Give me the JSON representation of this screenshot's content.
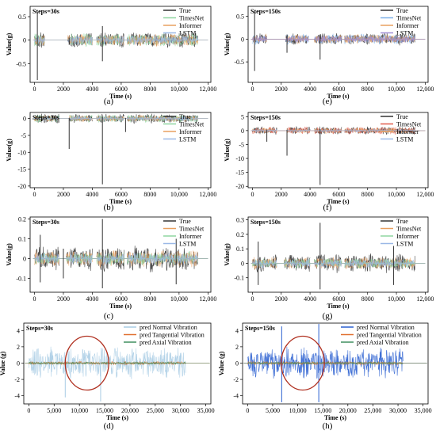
{
  "chart_data": [
    {
      "panel": "a",
      "caption": "(a)",
      "steps_label": "Steps=30s",
      "type": "line",
      "xlabel": "Time (s)",
      "ylabel": "Value(g)",
      "xlim": [
        -300,
        12200
      ],
      "ylim": [
        -0.9,
        0.72
      ],
      "xticks": [
        0,
        2000,
        4000,
        6000,
        8000,
        10000,
        12000
      ],
      "xtick_labels": [
        "0",
        "2000",
        "4000",
        "6000",
        "8000",
        "10,000",
        "12,000"
      ],
      "yticks": [
        -0.5,
        0,
        0.5
      ],
      "ytick_labels": [
        "-0.5",
        "0",
        "0.5"
      ],
      "legend_position": "top-right",
      "series": [
        {
          "name": "True",
          "color": "#333333",
          "amplitude": 0.12
        },
        {
          "name": "TimesNet",
          "color": "#8fd6a0",
          "amplitude": 0.1
        },
        {
          "name": "Informer",
          "color": "#e8a060",
          "amplitude": 0.09
        },
        {
          "name": "LSTM",
          "color": "#9bb8e6",
          "amplitude": 0.07
        }
      ],
      "segments": [
        [
          0,
          700
        ],
        [
          2300,
          4000
        ],
        [
          4300,
          6200
        ],
        [
          6400,
          11300
        ]
      ],
      "spikes": [
        [
          200,
          0.6,
          -0.85
        ],
        [
          4700,
          0.3,
          -0.45
        ],
        [
          2400,
          0.05,
          -0.1
        ]
      ]
    },
    {
      "panel": "e",
      "caption": "(e)",
      "steps_label": "Steps=150s",
      "type": "line",
      "xlabel": "Time (s)",
      "ylabel": "Value(g)",
      "xlim": [
        -300,
        12200
      ],
      "ylim": [
        -0.95,
        0.72
      ],
      "xticks": [
        0,
        2000,
        4000,
        6000,
        8000,
        10000,
        12000
      ],
      "xtick_labels": [
        "0",
        "2000",
        "4000",
        "6000",
        "8000",
        "10,000",
        "12,000"
      ],
      "yticks": [
        -0.5,
        0,
        0.5
      ],
      "ytick_labels": [
        "-0.5",
        "0",
        "0.5"
      ],
      "legend_position": "top-right",
      "series": [
        {
          "name": "True",
          "color": "#333333",
          "amplitude": 0.09
        },
        {
          "name": "TimesNet",
          "color": "#7fb0e8",
          "amplitude": 0.08
        },
        {
          "name": "Informer",
          "color": "#e8a060",
          "amplitude": 0.07
        },
        {
          "name": "LSTM",
          "color": "#a08fd6",
          "amplitude": 0.06
        }
      ],
      "segments": [
        [
          0,
          1000
        ],
        [
          2300,
          3900
        ],
        [
          4300,
          6200
        ],
        [
          6400,
          11300
        ]
      ],
      "spikes": [
        [
          150,
          0.6,
          -0.7
        ],
        [
          2400,
          0.1,
          -0.3
        ],
        [
          4700,
          0.05,
          -0.45
        ]
      ]
    },
    {
      "panel": "b",
      "caption": "(b)",
      "steps_label": "Steps=30s",
      "type": "line",
      "xlabel": "Time (s)",
      "ylabel": "Value(g)",
      "xlim": [
        -300,
        12200
      ],
      "ylim": [
        -20.5,
        1.8
      ],
      "xticks": [
        0,
        2000,
        4000,
        6000,
        8000,
        10000,
        12000
      ],
      "xtick_labels": [
        "0",
        "2000",
        "4000",
        "6000",
        "8000",
        "10,000",
        "12,000"
      ],
      "yticks": [
        0,
        -5,
        -10,
        -15,
        -20
      ],
      "ytick_labels": [
        "0",
        "-5",
        "-10",
        "-15",
        "-20"
      ],
      "legend_position": "top-right",
      "series": [
        {
          "name": "True",
          "color": "#333333",
          "amplitude": 1.0
        },
        {
          "name": "TimesNet",
          "color": "#8fd6a0",
          "amplitude": 0.8
        },
        {
          "name": "Informer",
          "color": "#e8a060",
          "amplitude": 0.7
        },
        {
          "name": "LSTM",
          "color": "#9bb8e6",
          "amplitude": 0.5
        }
      ],
      "segments": [
        [
          0,
          1700
        ],
        [
          2400,
          4000
        ],
        [
          4300,
          6200
        ],
        [
          6400,
          11300
        ]
      ],
      "spikes": [
        [
          4700,
          0.5,
          -19.5
        ],
        [
          2400,
          0.2,
          -9
        ],
        [
          6300,
          0.2,
          -4
        ]
      ]
    },
    {
      "panel": "f",
      "caption": "(f)",
      "steps_label": "Steps=150s",
      "type": "line",
      "xlabel": "Time (s)",
      "ylabel": "Value(g)",
      "xlim": [
        -300,
        12200
      ],
      "ylim": [
        -20.5,
        6.5
      ],
      "xticks": [
        0,
        2000,
        4000,
        6000,
        8000,
        10000,
        12000
      ],
      "xtick_labels": [
        "0",
        "2000",
        "4000",
        "6000",
        "8000",
        "10,000",
        "12,000"
      ],
      "yticks": [
        5,
        0,
        -5,
        -10,
        -15,
        -20
      ],
      "ytick_labels": [
        "5",
        "0",
        "-5",
        "-10",
        "-15",
        "-20"
      ],
      "legend_position": "top-right",
      "series": [
        {
          "name": "True",
          "color": "#333333",
          "amplitude": 1.0
        },
        {
          "name": "TimesNet",
          "color": "#e05a4a",
          "amplitude": 0.9
        },
        {
          "name": "Informer",
          "color": "#e8a060",
          "amplitude": 0.7
        },
        {
          "name": "LSTM",
          "color": "#9bb8e6",
          "amplitude": 0.4
        }
      ],
      "segments": [
        [
          0,
          1700
        ],
        [
          2400,
          4000
        ],
        [
          4300,
          6200
        ],
        [
          6400,
          11300
        ]
      ],
      "spikes": [
        [
          4700,
          0.5,
          -19.5
        ],
        [
          2400,
          0.3,
          -9
        ],
        [
          1000,
          0.2,
          -4
        ]
      ]
    },
    {
      "panel": "c",
      "caption": "(c)",
      "steps_label": "Steps=30s",
      "type": "line",
      "xlabel": "Time (s)",
      "ylabel": "Value(g)",
      "xlim": [
        -300,
        12200
      ],
      "ylim": [
        -0.17,
        0.21
      ],
      "xticks": [
        0,
        2000,
        4000,
        6000,
        8000,
        10000,
        12000
      ],
      "xtick_labels": [
        "0",
        "2000",
        "4000",
        "6000",
        "8000",
        "10,000",
        "12,000"
      ],
      "yticks": [
        0.2,
        0.1,
        0,
        -0.1
      ],
      "ytick_labels": [
        "0.2",
        "0.1",
        "0",
        "-0.1"
      ],
      "legend_position": "top-right",
      "series": [
        {
          "name": "True",
          "color": "#333333",
          "amplitude": 0.045
        },
        {
          "name": "TimesNet",
          "color": "#e8a060",
          "amplitude": 0.03
        },
        {
          "name": "Informer",
          "color": "#8fd6a0",
          "amplitude": 0.025
        },
        {
          "name": "LSTM",
          "color": "#9bb8e6",
          "amplitude": 0.02
        }
      ],
      "segments": [
        [
          0,
          1700
        ],
        [
          2200,
          4000
        ],
        [
          4300,
          6200
        ],
        [
          6400,
          11300
        ]
      ],
      "spikes": [
        [
          4700,
          0.2,
          -0.15
        ],
        [
          9800,
          0.1,
          -0.13
        ],
        [
          400,
          0.12,
          -0.12
        ],
        [
          2000,
          0.05,
          -0.1
        ]
      ]
    },
    {
      "panel": "g",
      "caption": "(g)",
      "steps_label": "Steps=150s",
      "type": "line",
      "xlabel": "Time (s)",
      "ylabel": "Value(g)",
      "xlim": [
        -300,
        12200
      ],
      "ylim": [
        -0.2,
        0.32
      ],
      "xticks": [
        0,
        2000,
        4000,
        6000,
        8000,
        10000,
        12000
      ],
      "xtick_labels": [
        "0",
        "2000",
        "4000",
        "6000",
        "8000",
        "10,000",
        "12,000"
      ],
      "yticks": [
        0.3,
        0.2,
        0.1,
        0,
        -0.1
      ],
      "ytick_labels": [
        "0.3",
        "0.2",
        "0.1",
        "0",
        "-0.1"
      ],
      "legend_position": "top-right",
      "series": [
        {
          "name": "True",
          "color": "#333333",
          "amplitude": 0.045
        },
        {
          "name": "TimesNet",
          "color": "#e8a060",
          "amplitude": 0.03
        },
        {
          "name": "Informer",
          "color": "#8fd6a0",
          "amplitude": 0.025
        },
        {
          "name": "LSTM",
          "color": "#9bb8e6",
          "amplitude": 0.02
        }
      ],
      "segments": [
        [
          0,
          1700
        ],
        [
          2200,
          4000
        ],
        [
          4300,
          6200
        ],
        [
          6400,
          11300
        ]
      ],
      "spikes": [
        [
          4700,
          0.28,
          -0.18
        ],
        [
          9800,
          0.12,
          -0.15
        ],
        [
          400,
          0.15,
          -0.15
        ]
      ]
    },
    {
      "panel": "d",
      "caption": "(d)",
      "steps_label": "Steps=30s",
      "type": "line",
      "xlabel": "Time (s)",
      "ylabel": "Value (g)",
      "xlim": [
        -1000,
        36000
      ],
      "ylim": [
        -5,
        4.9
      ],
      "xticks": [
        0,
        5000,
        10000,
        15000,
        20000,
        25000,
        30000,
        35000
      ],
      "xtick_labels": [
        "0",
        "5,000",
        "10,000",
        "15,000",
        "20,000",
        "25,000",
        "30,000",
        "35,000"
      ],
      "yticks": [
        4,
        2,
        0,
        -2,
        -4
      ],
      "ytick_labels": [
        "4",
        "2",
        "0",
        "-2",
        "-4"
      ],
      "legend_position": "top-right",
      "series": [
        {
          "name": "pred Normal Vibration",
          "color": "#a9cce4",
          "amplitude": 1.4
        },
        {
          "name": "pred Tangential Vibration",
          "color": "#e07030",
          "amplitude": 0.15
        },
        {
          "name": "pred Axial Vibration",
          "color": "#3f8f5f",
          "amplitude": 0.1
        }
      ],
      "segments": [
        [
          0,
          31000
        ]
      ],
      "spikes": [
        [
          7200,
          0.5,
          -4.2
        ],
        [
          14200,
          0.5,
          -4.7
        ]
      ],
      "annotation": {
        "shape": "ellipse",
        "color": "#b03020",
        "cx": 11500,
        "cy": 0,
        "rx": 4300,
        "ry": 3.3
      }
    },
    {
      "panel": "h",
      "caption": "(h)",
      "steps_label": "Steps=150s",
      "type": "line",
      "xlabel": "Time (s)",
      "ylabel": "Value (g)",
      "xlim": [
        -1000,
        36000
      ],
      "ylim": [
        -5,
        4.9
      ],
      "xticks": [
        0,
        5000,
        10000,
        15000,
        20000,
        25000,
        30000,
        35000
      ],
      "xtick_labels": [
        "0",
        "5,000",
        "10,000",
        "15,000",
        "20,000",
        "25,000",
        "30,000",
        "35,000"
      ],
      "yticks": [
        4,
        2,
        0,
        -2,
        -4
      ],
      "ytick_labels": [
        "4",
        "2",
        "0",
        "-2",
        "-4"
      ],
      "legend_position": "top-right",
      "series": [
        {
          "name": "pred Normal Vibration",
          "color": "#2a5fd0",
          "amplitude": 1.3
        },
        {
          "name": "pred Tangential Vibration",
          "color": "#e07030",
          "amplitude": 0.15
        },
        {
          "name": "pred Axial Vibration",
          "color": "#3f8f5f",
          "amplitude": 0.1
        }
      ],
      "segments": [
        [
          0,
          31000
        ]
      ],
      "spikes": [
        [
          6800,
          4.5,
          -4.8
        ],
        [
          14200,
          4.8,
          -4.8
        ]
      ],
      "annotation": {
        "shape": "ellipse",
        "color": "#b03020",
        "cx": 11000,
        "cy": 0,
        "rx": 4300,
        "ry": 3.3
      }
    }
  ]
}
